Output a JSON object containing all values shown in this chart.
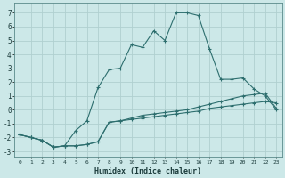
{
  "xlabel": "Humidex (Indice chaleur)",
  "bg_color": "#cce8e8",
  "grid_color": "#b0d0d0",
  "line_color": "#2d6e6e",
  "xlim": [
    -0.5,
    23.5
  ],
  "ylim": [
    -3.4,
    7.7
  ],
  "xticks": [
    0,
    1,
    2,
    3,
    4,
    5,
    6,
    7,
    8,
    9,
    10,
    11,
    12,
    13,
    14,
    15,
    16,
    17,
    18,
    19,
    20,
    21,
    22,
    23
  ],
  "yticks": [
    -3,
    -2,
    -1,
    0,
    1,
    2,
    3,
    4,
    5,
    6,
    7
  ],
  "line1_x": [
    0,
    1,
    2,
    3,
    4,
    5,
    6,
    7,
    8,
    9,
    10,
    11,
    12,
    13,
    14,
    15,
    16,
    17,
    18,
    19,
    20,
    21,
    22,
    23
  ],
  "line1_y": [
    -1.8,
    -2.0,
    -2.2,
    -2.7,
    -2.6,
    -2.6,
    -2.5,
    -2.3,
    -0.9,
    -0.8,
    -0.7,
    -0.6,
    -0.5,
    -0.4,
    -0.3,
    -0.2,
    -0.1,
    0.1,
    0.2,
    0.3,
    0.4,
    0.5,
    0.6,
    0.5
  ],
  "line2_x": [
    0,
    1,
    2,
    3,
    4,
    5,
    6,
    7,
    8,
    9,
    10,
    11,
    12,
    13,
    14,
    15,
    16,
    17,
    18,
    19,
    20,
    21,
    22,
    23
  ],
  "line2_y": [
    -1.8,
    -2.0,
    -2.2,
    -2.7,
    -2.6,
    -2.6,
    -2.5,
    -2.3,
    -0.9,
    -0.8,
    -0.6,
    -0.4,
    -0.3,
    -0.2,
    -0.1,
    0.0,
    0.2,
    0.4,
    0.6,
    0.8,
    1.0,
    1.1,
    1.2,
    0.1
  ],
  "line3_x": [
    0,
    1,
    2,
    3,
    4,
    5,
    6,
    7,
    8,
    9,
    10,
    11,
    12,
    13,
    14,
    15,
    16,
    17,
    18,
    19,
    20,
    21,
    22,
    23
  ],
  "line3_y": [
    -1.8,
    -2.0,
    -2.2,
    -2.7,
    -2.6,
    -1.5,
    -0.8,
    1.6,
    2.9,
    3.0,
    4.7,
    4.5,
    5.7,
    5.0,
    7.0,
    7.0,
    6.8,
    4.4,
    2.2,
    2.2,
    2.3,
    1.5,
    1.0,
    0.0
  ]
}
